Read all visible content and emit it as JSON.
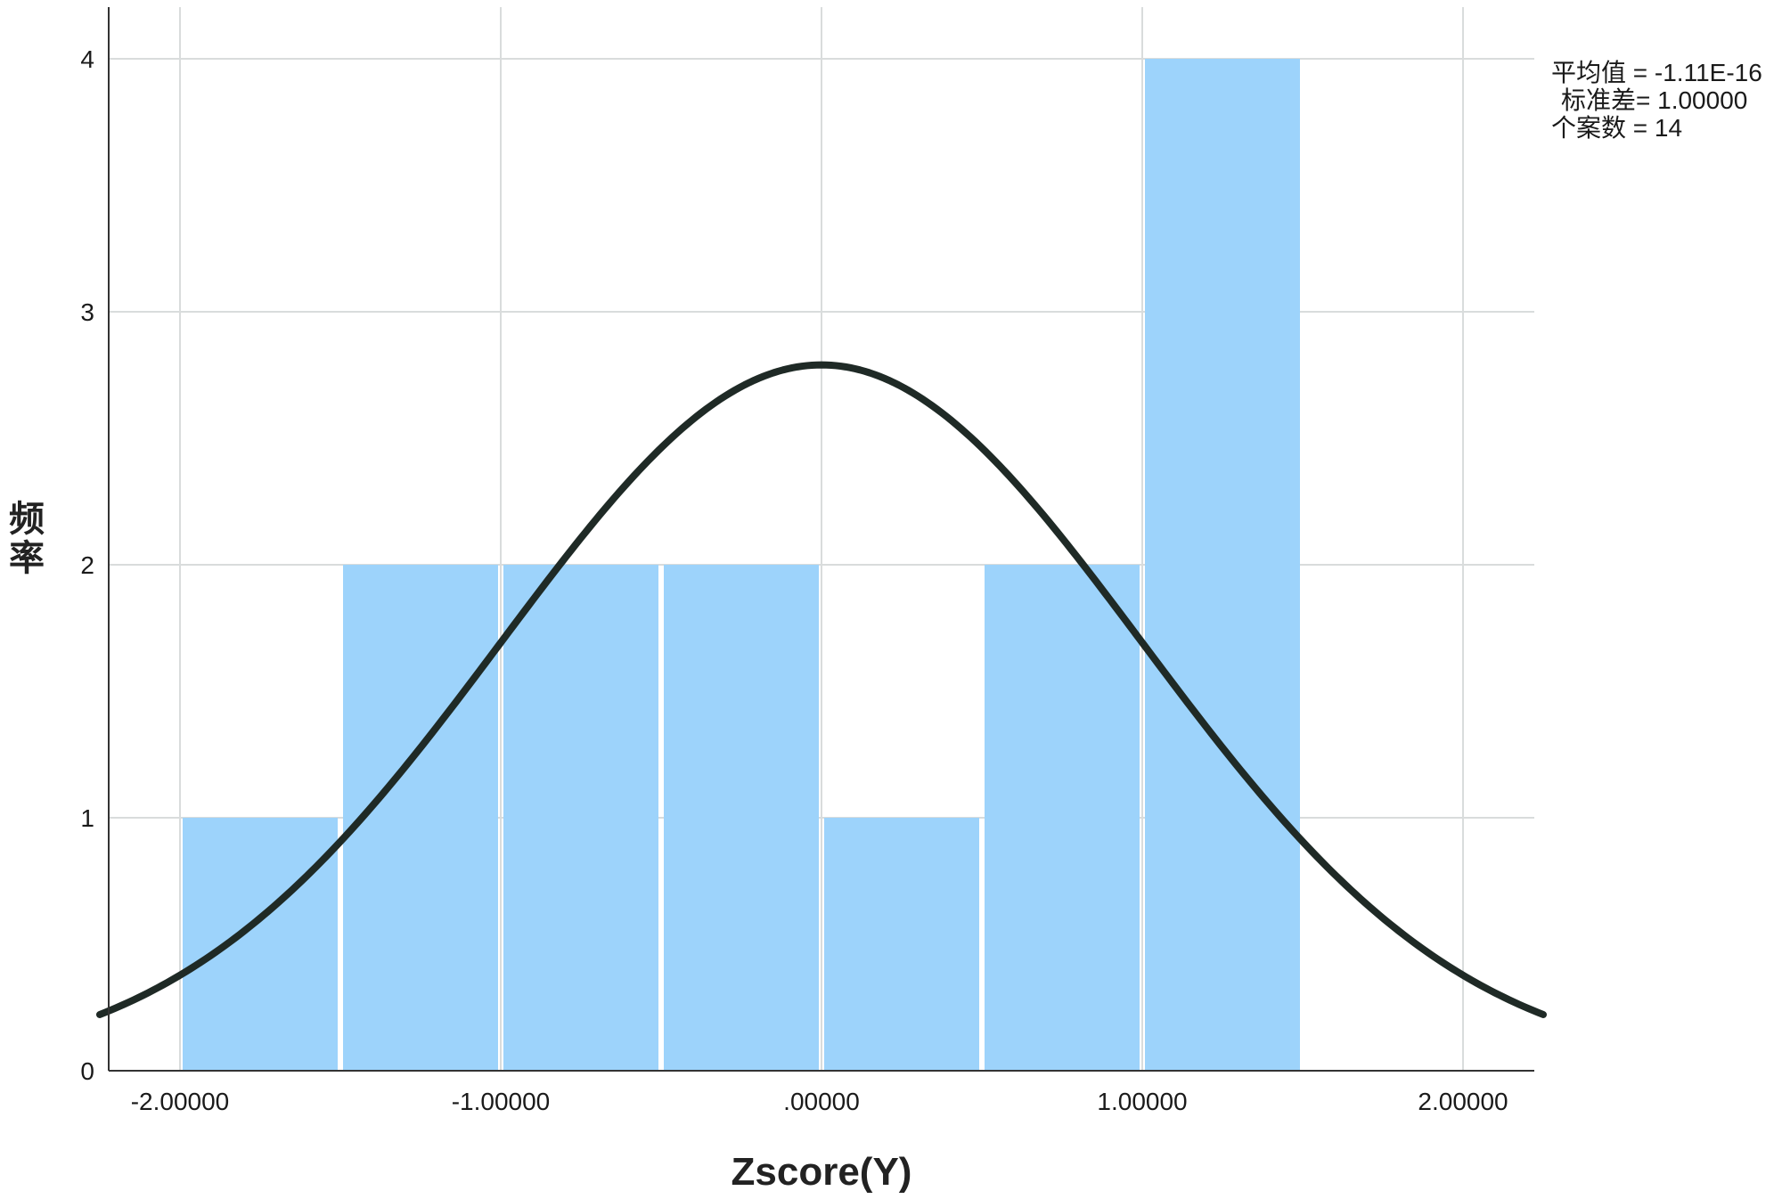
{
  "chart_data": {
    "type": "bar",
    "subtype": "histogram-with-normal-curve",
    "xlabel": "Zscore(Y)",
    "ylabel": "频率",
    "xlim": [
      -2.25,
      2.25
    ],
    "ylim": [
      0,
      4.2
    ],
    "x_ticks": [
      {
        "value": -2,
        "label": "-2.00000"
      },
      {
        "value": -1,
        "label": "-1.00000"
      },
      {
        "value": 0,
        "label": ".00000"
      },
      {
        "value": 1,
        "label": "1.00000"
      },
      {
        "value": 2,
        "label": "2.00000"
      }
    ],
    "y_ticks": [
      {
        "value": 0,
        "label": "0"
      },
      {
        "value": 1,
        "label": "1"
      },
      {
        "value": 2,
        "label": "2"
      },
      {
        "value": 3,
        "label": "3"
      },
      {
        "value": 4,
        "label": "4"
      }
    ],
    "bins": [
      {
        "start": -2.0,
        "end": -1.5,
        "count": 1
      },
      {
        "start": -1.5,
        "end": -1.0,
        "count": 2
      },
      {
        "start": -1.0,
        "end": -0.5,
        "count": 2
      },
      {
        "start": -0.5,
        "end": 0.0,
        "count": 2
      },
      {
        "start": 0.0,
        "end": 0.5,
        "count": 1
      },
      {
        "start": 0.5,
        "end": 1.0,
        "count": 2
      },
      {
        "start": 1.0,
        "end": 1.5,
        "count": 4
      }
    ],
    "normal_curve": {
      "mean": 0,
      "sd": 1,
      "n": 14,
      "bin_width": 0.5,
      "peak_frequency": 2.79
    },
    "stats": {
      "mean_line": "平均值 = -1.11E-16",
      "sd_line": "标准差= 1.00000",
      "n_line": "个案数 = 14"
    },
    "grid": true,
    "colors": {
      "bar": "#9dd3fb",
      "bar_edge": "#ffffff",
      "curve": "#1f2a26",
      "grid": "#d9dcdc",
      "axis": "#333333"
    }
  }
}
